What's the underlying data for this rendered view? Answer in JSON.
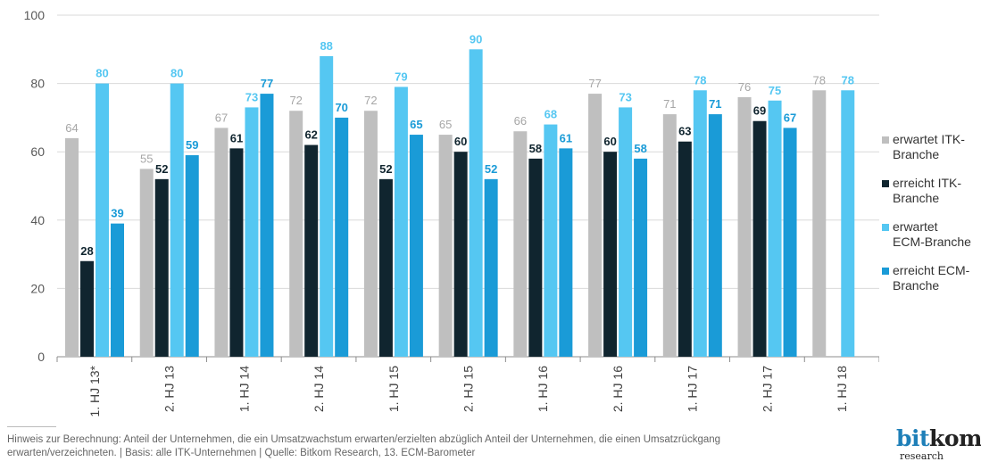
{
  "chart_data": {
    "type": "bar",
    "categories": [
      "1. HJ 13*",
      "2. HJ 13",
      "1. HJ 14",
      "2. HJ 14",
      "1. HJ 15",
      "2. HJ 15",
      "1. HJ 16",
      "2. HJ 16",
      "1. HJ 17",
      "2. HJ 17",
      "1. HJ 18"
    ],
    "series": [
      {
        "name": "erwartet ITK-Branche",
        "color": "#bfbfbf",
        "label_color": "#a6a6a6",
        "label_bold": false,
        "values": [
          64,
          55,
          67,
          72,
          72,
          65,
          66,
          77,
          71,
          76,
          78
        ]
      },
      {
        "name": "erreicht ITK-Branche",
        "color": "#10252f",
        "label_color": "#10252f",
        "label_bold": true,
        "values": [
          28,
          52,
          61,
          62,
          52,
          60,
          58,
          60,
          63,
          69,
          null
        ]
      },
      {
        "name": "erwartet ECM-Branche",
        "color": "#55c7f2",
        "label_color": "#55c7f2",
        "label_bold": true,
        "values": [
          80,
          80,
          73,
          88,
          79,
          90,
          68,
          73,
          78,
          75,
          78
        ]
      },
      {
        "name": "erreicht ECM-Branche",
        "color": "#1a9bd7",
        "label_color": "#1a9bd7",
        "label_bold": true,
        "values": [
          39,
          59,
          77,
          70,
          65,
          52,
          61,
          58,
          71,
          67,
          null
        ]
      }
    ],
    "ylim": [
      0,
      100
    ],
    "yticks": [
      0,
      20,
      40,
      60,
      80,
      100
    ],
    "ytick_labels": [
      "0",
      "20",
      "40",
      "60",
      "80",
      "100"
    ],
    "grid": true,
    "legend_position": "right",
    "colors": {
      "grid": "#d9d9d9",
      "axis": "#8c8c8c",
      "tick_text": "#595959"
    }
  },
  "legend": {
    "items": [
      {
        "lines": [
          "erwartet ITK-",
          "Branche"
        ],
        "color": "#bfbfbf"
      },
      {
        "lines": [
          "erreicht ITK-",
          "Branche"
        ],
        "color": "#10252f"
      },
      {
        "lines": [
          "erwartet",
          "ECM-Branche"
        ],
        "color": "#55c7f2"
      },
      {
        "lines": [
          "erreicht ECM-",
          "Branche"
        ],
        "color": "#1a9bd7"
      }
    ]
  },
  "footnote": "Hinweis zur Berechnung: Anteil der Unternehmen, die ein Umsatzwachstum erwarten/erzielten abzüglich Anteil der Unternehmen, die einen Umsatzrückgang\nerwarten/verzeichneten. | Basis: alle ITK-Unternehmen | Quelle: Bitkom Research, 13. ECM-Barometer",
  "logo": {
    "brand_main": "bit",
    "brand_accent": "kom",
    "brand_sub": "research"
  }
}
